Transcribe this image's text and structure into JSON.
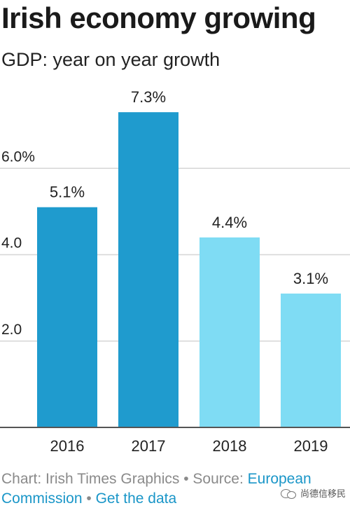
{
  "title": "Irish economy growing",
  "subtitle": "GDP: year on year growth",
  "footer": {
    "prefix": "Chart: Irish Times Graphics • Source: ",
    "source_link": "European Commission",
    "separator": " • ",
    "data_link": "Get the data"
  },
  "watermark": {
    "text": "尚德信移民",
    "icon": "wechat-icon"
  },
  "colors": {
    "actual": "#1f9bce",
    "forecast": "#7fdcf4",
    "gridline": "#d6d6d6",
    "baseline": "#555555",
    "link": "#1a96c8"
  },
  "chart_data": {
    "type": "bar",
    "categories": [
      "2016",
      "2017",
      "2018",
      "2019"
    ],
    "values": [
      5.1,
      7.3,
      4.4,
      3.1
    ],
    "value_labels": [
      "5.1%",
      "7.3%",
      "4.4%",
      "3.1%"
    ],
    "bar_colors": [
      "#1f9bce",
      "#1f9bce",
      "#7fdcf4",
      "#7fdcf4"
    ],
    "title": "Irish economy growing",
    "subtitle": "GDP: year on year growth",
    "xlabel": "",
    "ylabel": "",
    "ylim": [
      0,
      8
    ],
    "yticks": [
      2,
      4,
      6
    ],
    "ytick_labels": [
      "2.0",
      "4.0",
      "6.0%"
    ],
    "grid": true
  }
}
